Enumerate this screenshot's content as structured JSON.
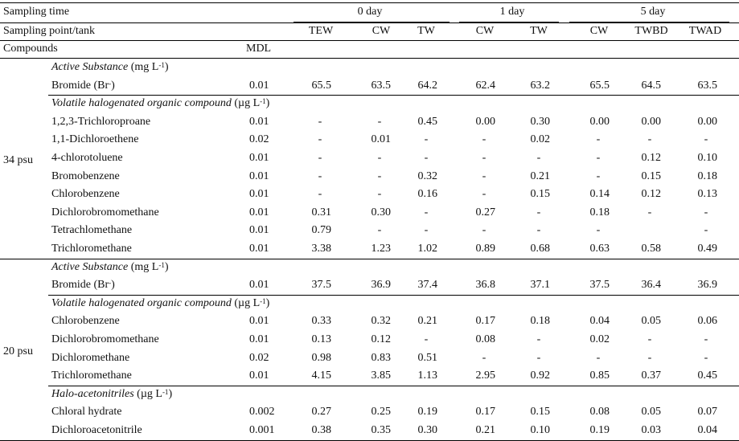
{
  "header": {
    "sampling_time_label": "Sampling time",
    "sampling_point_label": "Sampling point/tank",
    "compounds_label": "Compounds",
    "mdl_label": "MDL",
    "times": [
      "0 day",
      "1 day",
      "5 day"
    ],
    "tanks": [
      "TEW",
      "CW",
      "TW",
      "CW",
      "TW",
      "CW",
      "TWBD",
      "TWAD"
    ]
  },
  "groups": [
    {
      "label": "34 psu",
      "sections": [
        {
          "title": "Active Substance",
          "unit": "(mg L",
          "unit_exp": "-1",
          "unit_close": ")",
          "rows": [
            {
              "name": "Bromide (Br",
              "name_sup": "-",
              "name_close": ")",
              "mdl": "0.01",
              "values": [
                "65.5",
                "63.5",
                "64.2",
                "62.4",
                "63.2",
                "65.5",
                "64.5",
                "63.5"
              ]
            }
          ]
        },
        {
          "title": "Volatile halogenated organic compound",
          "unit": "(µg L",
          "unit_exp": "-1",
          "unit_close": ")",
          "rows": [
            {
              "name": "1,2,3-Trichloroproane",
              "mdl": "0.01",
              "values": [
                "-",
                "-",
                "0.45",
                "0.00",
                "0.30",
                "0.00",
                "0.00",
                "0.00"
              ]
            },
            {
              "name": "1,1-Dichloroethene",
              "mdl": "0.02",
              "values": [
                "-",
                "0.01",
                "-",
                "-",
                "0.02",
                "-",
                "-",
                "-"
              ]
            },
            {
              "name": "4-chlorotoluene",
              "mdl": "0.01",
              "values": [
                "-",
                "-",
                "-",
                "-",
                "-",
                "-",
                "0.12",
                "0.10"
              ]
            },
            {
              "name": "Bromobenzene",
              "mdl": "0.01",
              "values": [
                "-",
                "-",
                "0.32",
                "-",
                "0.21",
                "-",
                "0.15",
                "0.18"
              ]
            },
            {
              "name": "Chlorobenzene",
              "mdl": "0.01",
              "values": [
                "-",
                "-",
                "0.16",
                "-",
                "0.15",
                "0.14",
                "0.12",
                "0.13"
              ]
            },
            {
              "name": "Dichlorobromomethane",
              "mdl": "0.01",
              "values": [
                "0.31",
                "0.30",
                "-",
                "0.27",
                "-",
                "0.18",
                "-",
                "-"
              ]
            },
            {
              "name": "Tetrachlomethane",
              "mdl": "0.01",
              "values": [
                "0.79",
                "-",
                "-",
                "-",
                "-",
                "-",
                "",
                "-"
              ]
            },
            {
              "name": "Trichloromethane",
              "mdl": "0.01",
              "values": [
                "3.38",
                "1.23",
                "1.02",
                "0.89",
                "0.68",
                "0.63",
                "0.58",
                "0.49"
              ]
            }
          ]
        }
      ]
    },
    {
      "label": "20 psu",
      "sections": [
        {
          "title": "Active Substance",
          "unit": "(mg L",
          "unit_exp": "-1",
          "unit_close": ")",
          "rows": [
            {
              "name": "Bromide (Br",
              "name_sup": "-",
              "name_close": ")",
              "mdl": "0.01",
              "values": [
                "37.5",
                "36.9",
                "37.4",
                "36.8",
                "37.1",
                "37.5",
                "36.4",
                "36.9"
              ]
            }
          ]
        },
        {
          "title": "Volatile halogenated organic compound",
          "unit": "(µg L",
          "unit_exp": "-1",
          "unit_close": ")",
          "rows": [
            {
              "name": "Chlorobenzene",
              "mdl": "0.01",
              "values": [
                "0.33",
                "0.32",
                "0.21",
                "0.17",
                "0.18",
                "0.04",
                "0.05",
                "0.06"
              ]
            },
            {
              "name": "Dichlorobromomethane",
              "mdl": "0.01",
              "values": [
                "0.13",
                "0.12",
                "-",
                "0.08",
                "-",
                "0.02",
                "-",
                "-"
              ]
            },
            {
              "name": "Dichloromethane",
              "mdl": "0.02",
              "values": [
                "0.98",
                "0.83",
                "0.51",
                "-",
                "-",
                "-",
                "-",
                "-"
              ]
            },
            {
              "name": "Trichloromethane",
              "mdl": "0.01",
              "values": [
                "4.15",
                "3.85",
                "1.13",
                "2.95",
                "0.92",
                "0.85",
                "0.37",
                "0.45"
              ]
            }
          ]
        },
        {
          "title": "Halo-acetonitriles",
          "unit": "(µg L",
          "unit_exp": "-1",
          "unit_close": ")",
          "rows": [
            {
              "name": "Chloral hydrate",
              "mdl": "0.002",
              "values": [
                "0.27",
                "0.25",
                "0.19",
                "0.17",
                "0.15",
                "0.08",
                "0.05",
                "0.07"
              ]
            },
            {
              "name": "Dichloroacetonitrile",
              "mdl": "0.001",
              "values": [
                "0.38",
                "0.35",
                "0.30",
                "0.21",
                "0.10",
                "0.19",
                "0.03",
                "0.04"
              ]
            }
          ]
        }
      ]
    }
  ]
}
